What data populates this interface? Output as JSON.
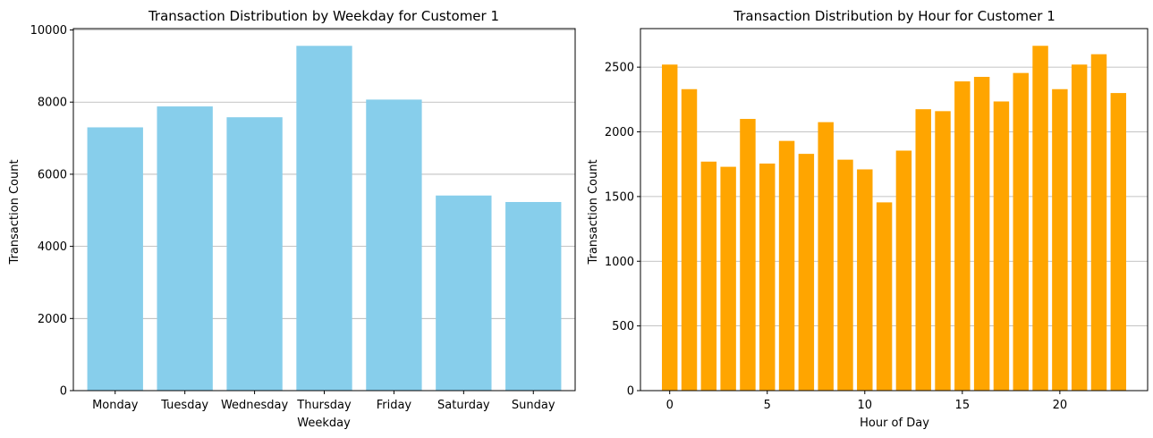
{
  "chart_data": [
    {
      "type": "bar",
      "title": "Transaction Distribution by Weekday for Customer 1",
      "xlabel": "Weekday",
      "ylabel": "Transaction Count",
      "categories": [
        "Monday",
        "Tuesday",
        "Wednesday",
        "Thursday",
        "Friday",
        "Saturday",
        "Sunday"
      ],
      "values": [
        7300,
        7880,
        7580,
        9560,
        8070,
        5410,
        5230
      ],
      "ylim": [
        0,
        10038
      ],
      "yticks": [
        0,
        2000,
        4000,
        6000,
        8000,
        10000
      ],
      "grid": "y",
      "color": "#87ceeb"
    },
    {
      "type": "bar",
      "title": "Transaction Distribution by Hour for Customer 1",
      "xlabel": "Hour of Day",
      "ylabel": "Transaction Count",
      "x": [
        0,
        1,
        2,
        3,
        4,
        5,
        6,
        7,
        8,
        9,
        10,
        11,
        12,
        13,
        14,
        15,
        16,
        17,
        18,
        19,
        20,
        21,
        22,
        23
      ],
      "values": [
        2520,
        2330,
        1770,
        1730,
        2100,
        1755,
        1930,
        1830,
        2075,
        1785,
        1710,
        1455,
        1855,
        2175,
        2160,
        2390,
        2425,
        2235,
        2455,
        2665,
        2330,
        2520,
        2600,
        2300
      ],
      "xlim": [
        -1.5,
        24.5
      ],
      "xticks": [
        0,
        5,
        10,
        15,
        20
      ],
      "ylim": [
        0,
        2798
      ],
      "yticks": [
        0,
        500,
        1000,
        1500,
        2000,
        2500
      ],
      "grid": "y",
      "color": "#ffa500"
    }
  ]
}
